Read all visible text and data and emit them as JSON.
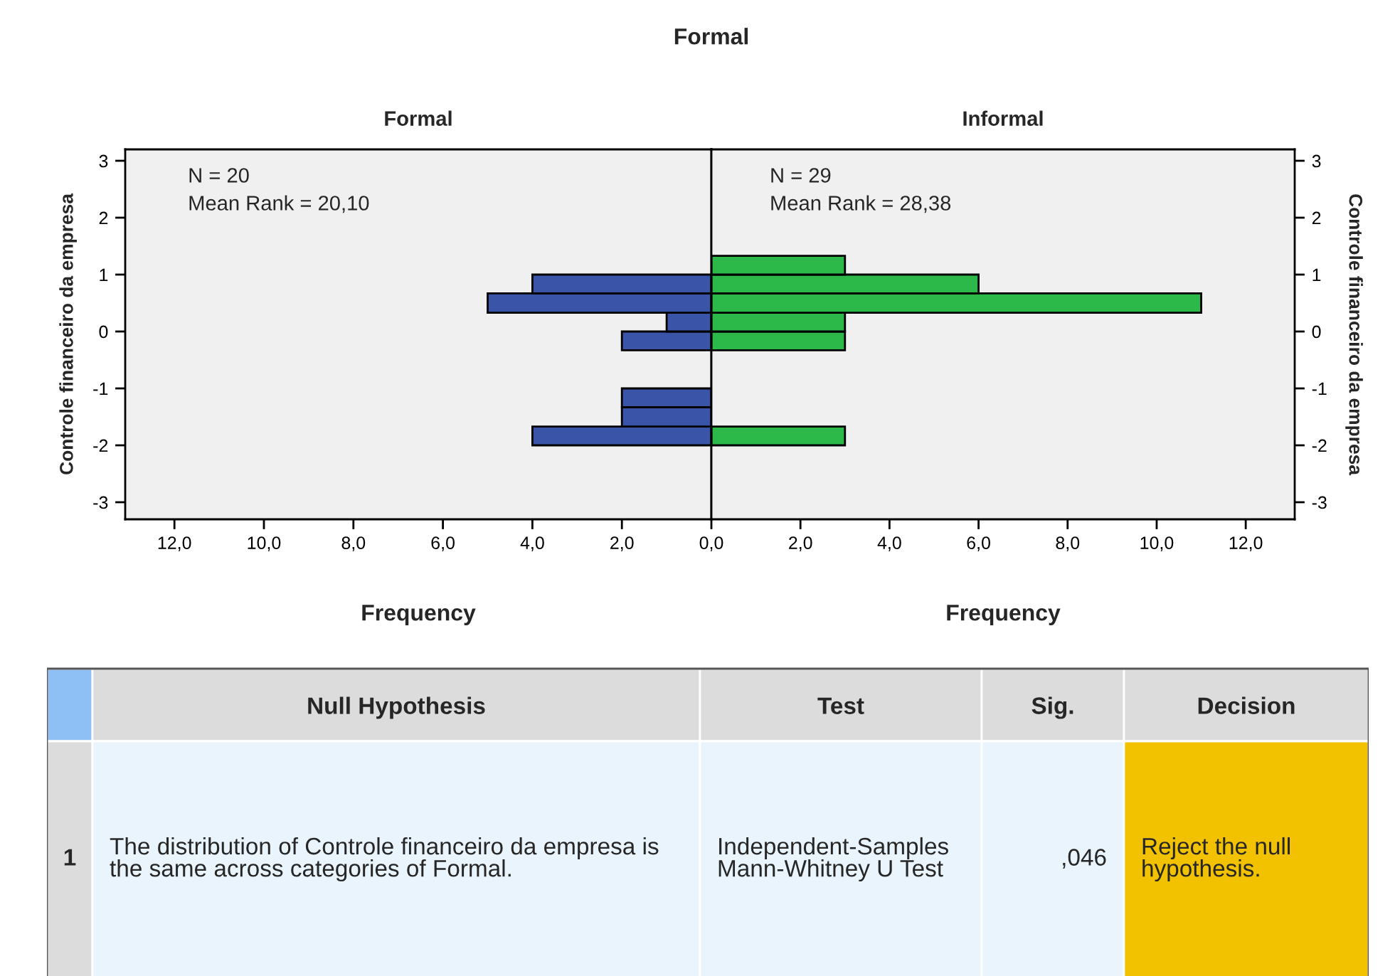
{
  "chart_data": [
    {
      "type": "other",
      "title": "Formal"
    },
    {
      "type": "histogram",
      "orientation": "horizontal",
      "title": "Formal",
      "xlabel": "Frequency",
      "ylabel": "Controle financeiro da empresa",
      "bins": [
        -2,
        -1.67,
        -1.33,
        -1,
        -0.33,
        0,
        0.33,
        0.67,
        1
      ],
      "series": [
        {
          "color": "#3a55a8",
          "values": [
            4,
            2,
            2,
            0,
            2,
            1,
            5,
            4
          ]
        }
      ],
      "xlim": [
        13.1,
        0
      ],
      "xticks": [
        {
          "value": 12,
          "label": "12,0"
        },
        {
          "value": 10,
          "label": "10,0"
        },
        {
          "value": 8,
          "label": "8,0"
        },
        {
          "value": 6,
          "label": "6,0"
        },
        {
          "value": 4,
          "label": "4,0"
        },
        {
          "value": 2,
          "label": "2,0"
        },
        {
          "value": 0,
          "label": "0,0"
        }
      ],
      "ylim": [
        -3.3,
        3.2
      ],
      "yticks": [
        -3,
        -2,
        -1,
        0,
        1,
        2,
        3
      ],
      "annotations": [
        "N = 20",
        "Mean Rank = 20,10"
      ]
    },
    {
      "type": "histogram",
      "orientation": "horizontal",
      "title": "Informal",
      "xlabel": "Frequency",
      "ylabel": "Controle financeiro da empresa",
      "bins": [
        -2,
        -1.67,
        -0.33,
        0,
        0.33,
        0.67,
        1,
        1.33
      ],
      "series": [
        {
          "color": "#2db84a",
          "values": [
            3,
            0,
            3,
            3,
            11,
            6,
            3
          ]
        }
      ],
      "xlim": [
        0,
        13.1
      ],
      "xticks": [
        {
          "value": 2,
          "label": "2,0"
        },
        {
          "value": 4,
          "label": "4,0"
        },
        {
          "value": 6,
          "label": "6,0"
        },
        {
          "value": 8,
          "label": "8,0"
        },
        {
          "value": 10,
          "label": "10,0"
        },
        {
          "value": 12,
          "label": "12,0"
        }
      ],
      "ylim": [
        -3.3,
        3.2
      ],
      "yticks": [
        -3,
        -2,
        -1,
        0,
        1,
        2,
        3
      ],
      "annotations": [
        "N = 29",
        "Mean Rank = 28,38"
      ]
    },
    {
      "type": "other",
      "annotations": [
        "Null Hypothesis",
        "Test",
        "Sig.",
        "Decision",
        "1",
        "The distribution of Controle financeiro da empresa is the same across categories of Formal.",
        "Independent-Samples Mann-Whitney U Test",
        ",046",
        "Reject the null hypothesis."
      ]
    }
  ]
}
